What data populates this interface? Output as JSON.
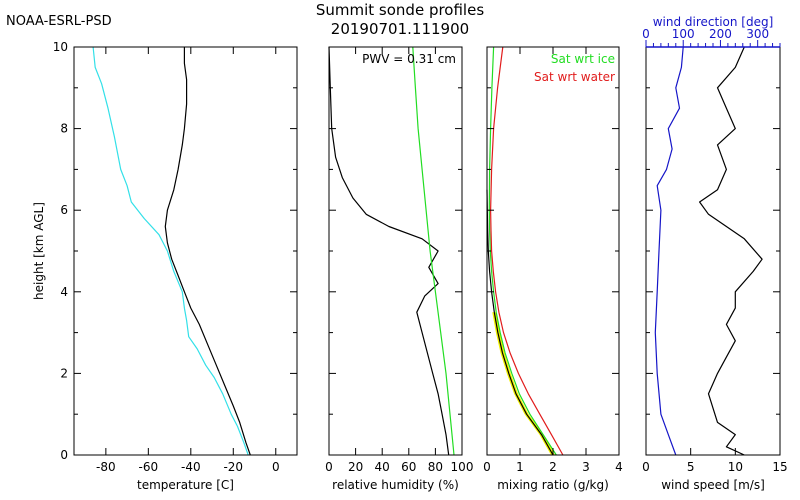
{
  "header": {
    "org": "NOAA-ESRL-PSD",
    "title": "Summit sonde profiles",
    "subtitle": "20190701.111900"
  },
  "colors": {
    "black": "#000000",
    "cyan": "#33e0e8",
    "green": "#22dd22",
    "red": "#e11c1c",
    "blue": "#1515c8",
    "yellow": "#f0f000"
  },
  "chart_data": [
    {
      "type": "line",
      "ylabel": "height [km AGL]",
      "xlabel": "temperature [C]",
      "xlim": [
        -95,
        10
      ],
      "ylim": [
        0,
        10
      ],
      "xticks": [
        -80,
        -60,
        -40,
        -20,
        0
      ],
      "yticks": [
        0,
        2,
        4,
        6,
        8,
        10
      ],
      "series": [
        {
          "color": "black",
          "points": [
            [
              -12,
              0
            ],
            [
              -14,
              0.3
            ],
            [
              -17,
              0.8
            ],
            [
              -20,
              1.2
            ],
            [
              -24,
              1.7
            ],
            [
              -28,
              2.2
            ],
            [
              -32,
              2.7
            ],
            [
              -36,
              3.2
            ],
            [
              -40,
              3.6
            ],
            [
              -43,
              4
            ],
            [
              -46,
              4.4
            ],
            [
              -49,
              4.8
            ],
            [
              -51,
              5.2
            ],
            [
              -52,
              5.6
            ],
            [
              -51,
              6
            ],
            [
              -48,
              6.5
            ],
            [
              -46,
              7
            ],
            [
              -44,
              7.6
            ],
            [
              -43,
              8
            ],
            [
              -42,
              8.6
            ],
            [
              -42,
              9.2
            ],
            [
              -43,
              9.6
            ],
            [
              -43,
              10
            ]
          ]
        },
        {
          "color": "cyan",
          "points": [
            [
              -13,
              0
            ],
            [
              -15,
              0.3
            ],
            [
              -18,
              0.7
            ],
            [
              -21,
              1
            ],
            [
              -25,
              1.5
            ],
            [
              -29,
              1.9
            ],
            [
              -33,
              2.2
            ],
            [
              -37,
              2.6
            ],
            [
              -41,
              2.9
            ],
            [
              -42,
              3.3
            ],
            [
              -43,
              3.6
            ],
            [
              -44,
              4
            ],
            [
              -48,
              4.5
            ],
            [
              -51,
              5
            ],
            [
              -55,
              5.4
            ],
            [
              -62,
              5.8
            ],
            [
              -68,
              6.2
            ],
            [
              -70,
              6.6
            ],
            [
              -73,
              7
            ],
            [
              -76,
              7.8
            ],
            [
              -79,
              8.5
            ],
            [
              -82,
              9.1
            ],
            [
              -85,
              9.5
            ],
            [
              -86,
              10
            ]
          ]
        }
      ]
    },
    {
      "type": "line",
      "xlabel": "relative humidity (%)",
      "annotation": "PWV = 0.31 cm",
      "xlim": [
        0,
        100
      ],
      "ylim": [
        0,
        10
      ],
      "xticks": [
        0,
        20,
        40,
        60,
        80,
        100
      ],
      "series": [
        {
          "color": "black",
          "points": [
            [
              90,
              0
            ],
            [
              88,
              0.5
            ],
            [
              85,
              1
            ],
            [
              82,
              1.5
            ],
            [
              78,
              2
            ],
            [
              74,
              2.5
            ],
            [
              70,
              3
            ],
            [
              66,
              3.5
            ],
            [
              72,
              3.9
            ],
            [
              82,
              4.2
            ],
            [
              75,
              4.6
            ],
            [
              82,
              5
            ],
            [
              70,
              5.3
            ],
            [
              45,
              5.6
            ],
            [
              28,
              5.9
            ],
            [
              18,
              6.3
            ],
            [
              10,
              6.8
            ],
            [
              5,
              7.3
            ],
            [
              2,
              8
            ],
            [
              1,
              9
            ],
            [
              0,
              10
            ]
          ]
        },
        {
          "color": "green",
          "points": [
            [
              94,
              0
            ],
            [
              91,
              1
            ],
            [
              88,
              2
            ],
            [
              84,
              3
            ],
            [
              80,
              4
            ],
            [
              76,
              5
            ],
            [
              73,
              6
            ],
            [
              70,
              7
            ],
            [
              67,
              8
            ],
            [
              65,
              9
            ],
            [
              63,
              10
            ]
          ]
        }
      ]
    },
    {
      "type": "line",
      "xlabel": "mixing ratio (g/kg)",
      "legend": [
        "Sat wrt ice",
        "Sat wrt water"
      ],
      "xlim": [
        0,
        4
      ],
      "ylim": [
        0,
        10
      ],
      "xticks": [
        0,
        1,
        2,
        3,
        4
      ],
      "series": [
        {
          "name": "Sat wrt ice",
          "color": "green",
          "points": [
            [
              2.1,
              0
            ],
            [
              1.7,
              0.5
            ],
            [
              1.3,
              1
            ],
            [
              0.98,
              1.5
            ],
            [
              0.75,
              2
            ],
            [
              0.55,
              2.5
            ],
            [
              0.4,
              3
            ],
            [
              0.28,
              3.5
            ],
            [
              0.2,
              4
            ],
            [
              0.14,
              4.5
            ],
            [
              0.1,
              5
            ],
            [
              0.08,
              5.5
            ],
            [
              0.07,
              6
            ],
            [
              0.08,
              7
            ],
            [
              0.11,
              8
            ],
            [
              0.15,
              9
            ],
            [
              0.2,
              10
            ]
          ]
        },
        {
          "name": "Sat wrt water",
          "color": "red",
          "points": [
            [
              2.3,
              0
            ],
            [
              1.95,
              0.5
            ],
            [
              1.6,
              1
            ],
            [
              1.25,
              1.5
            ],
            [
              0.95,
              2
            ],
            [
              0.7,
              2.5
            ],
            [
              0.5,
              3
            ],
            [
              0.36,
              3.5
            ],
            [
              0.26,
              4
            ],
            [
              0.19,
              4.5
            ],
            [
              0.14,
              5
            ],
            [
              0.12,
              5.5
            ],
            [
              0.11,
              6
            ],
            [
              0.14,
              7
            ],
            [
              0.2,
              8
            ],
            [
              0.32,
              9
            ],
            [
              0.48,
              10
            ]
          ]
        },
        {
          "color": "black",
          "points": [
            [
              2,
              0
            ],
            [
              1.65,
              0.5
            ],
            [
              1.2,
              1
            ],
            [
              0.88,
              1.5
            ],
            [
              0.66,
              2
            ],
            [
              0.47,
              2.5
            ],
            [
              0.33,
              3
            ],
            [
              0.22,
              3.5
            ],
            [
              0.14,
              4
            ],
            [
              0.08,
              4.5
            ],
            [
              0.04,
              5
            ],
            [
              0.02,
              5.5
            ],
            [
              0.01,
              6
            ],
            [
              0,
              6.5
            ]
          ]
        }
      ],
      "band": {
        "color": "yellow",
        "center": [
          [
            2,
            0
          ],
          [
            1.65,
            0.5
          ],
          [
            1.2,
            1
          ],
          [
            0.88,
            1.5
          ],
          [
            0.66,
            2
          ],
          [
            0.47,
            2.5
          ],
          [
            0.33,
            3
          ],
          [
            0.22,
            3.5
          ]
        ],
        "halfwidth": 0.06
      }
    },
    {
      "type": "line",
      "xlabel": "wind speed [m/s]",
      "top_xlabel": "wind direction [deg]",
      "xlim": [
        0,
        15
      ],
      "ylim": [
        0,
        10
      ],
      "xticks": [
        0,
        5,
        10,
        15
      ],
      "top_xlim": [
        0,
        360
      ],
      "top_xticks": [
        0,
        100,
        200,
        300
      ],
      "series": [
        {
          "color": "black",
          "axis": "speed",
          "points": [
            [
              11,
              0
            ],
            [
              9,
              0.2
            ],
            [
              10,
              0.5
            ],
            [
              8,
              0.8
            ],
            [
              7,
              1.5
            ],
            [
              8,
              2
            ],
            [
              9,
              2.4
            ],
            [
              10,
              2.8
            ],
            [
              9,
              3.2
            ],
            [
              10,
              3.6
            ],
            [
              10,
              4
            ],
            [
              12,
              4.5
            ],
            [
              13,
              4.8
            ],
            [
              11,
              5.3
            ],
            [
              9,
              5.6
            ],
            [
              7,
              5.9
            ],
            [
              6,
              6.2
            ],
            [
              8,
              6.5
            ],
            [
              9,
              7
            ],
            [
              8,
              7.6
            ],
            [
              10,
              8
            ],
            [
              9,
              8.5
            ],
            [
              8,
              9
            ],
            [
              10,
              9.5
            ],
            [
              11,
              10
            ]
          ]
        },
        {
          "color": "blue",
          "axis": "direction",
          "points": [
            [
              80,
              0
            ],
            [
              60,
              0.5
            ],
            [
              40,
              1
            ],
            [
              30,
              2
            ],
            [
              25,
              3
            ],
            [
              30,
              4
            ],
            [
              35,
              5
            ],
            [
              40,
              6
            ],
            [
              30,
              6.6
            ],
            [
              55,
              7
            ],
            [
              70,
              7.5
            ],
            [
              60,
              8
            ],
            [
              90,
              8.5
            ],
            [
              80,
              9
            ],
            [
              95,
              9.5
            ],
            [
              100,
              10
            ]
          ]
        }
      ]
    }
  ]
}
